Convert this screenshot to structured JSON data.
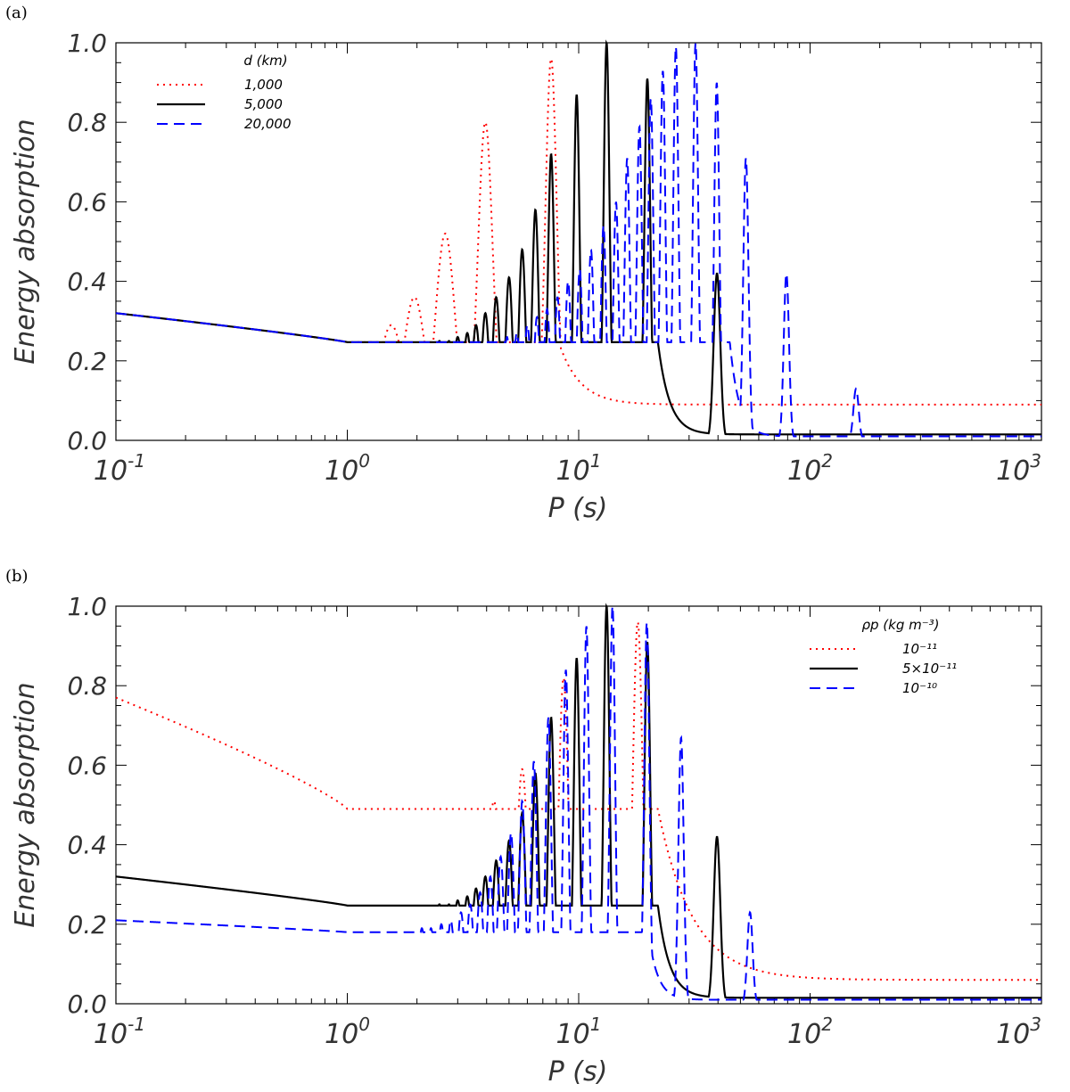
{
  "chart_data": [
    {
      "type": "line",
      "panel_label": "(a)",
      "xscale": "log",
      "xlim": [
        0.1,
        1000
      ],
      "ylim": [
        0.0,
        1.0
      ],
      "xlabel": "P (s)",
      "ylabel": "Energy absorption",
      "x_ticks": [
        {
          "value": 0.1,
          "base": "10",
          "exp": "-1"
        },
        {
          "value": 1,
          "base": "10",
          "exp": "0"
        },
        {
          "value": 10,
          "base": "10",
          "exp": "1"
        },
        {
          "value": 100,
          "base": "10",
          "exp": "2"
        },
        {
          "value": 1000,
          "base": "10",
          "exp": "3"
        }
      ],
      "y_ticks": [
        {
          "value": 0.0,
          "label": "0.0"
        },
        {
          "value": 0.2,
          "label": "0.2"
        },
        {
          "value": 0.4,
          "label": "0.4"
        },
        {
          "value": 0.6,
          "label": "0.6"
        },
        {
          "value": 0.8,
          "label": "0.8"
        },
        {
          "value": 1.0,
          "label": "1.0"
        }
      ],
      "legend": {
        "title": "d (km)",
        "placement": "top-left",
        "entries": [
          {
            "label": "1,000",
            "series": 0
          },
          {
            "label": "5,000",
            "series": 1
          },
          {
            "label": "20,000",
            "series": 2
          }
        ]
      },
      "series": [
        {
          "name": "1,000",
          "color": "#ff0000",
          "dash": "dotted",
          "baseline": {
            "a": 0.32,
            "b": 0.247,
            "c": 0.9
          },
          "peaks": [
            {
              "P": 1.55,
              "h": 0.29,
              "w": 0.08
            },
            {
              "P": 1.95,
              "h": 0.36,
              "w": 0.07
            },
            {
              "P": 2.65,
              "h": 0.52,
              "w": 0.06
            },
            {
              "P": 3.95,
              "h": 0.8,
              "w": 0.045
            },
            {
              "P": 7.6,
              "h": 0.96,
              "w": 0.035
            }
          ],
          "tail": {
            "P0": 8.2,
            "h0": 0.09,
            "k": 0.09
          }
        },
        {
          "name": "5,000",
          "color": "#000000",
          "dash": "solid",
          "baseline": {
            "a": 0.32,
            "b": 0.247,
            "c": 0.9
          },
          "peaks": [
            {
              "P": 2.5,
              "h": 0.25,
              "w": 0.03
            },
            {
              "P": 2.75,
              "h": 0.25,
              "w": 0.03
            },
            {
              "P": 3.0,
              "h": 0.26,
              "w": 0.028
            },
            {
              "P": 3.3,
              "h": 0.27,
              "w": 0.026
            },
            {
              "P": 3.6,
              "h": 0.29,
              "w": 0.025
            },
            {
              "P": 3.95,
              "h": 0.32,
              "w": 0.024
            },
            {
              "P": 4.4,
              "h": 0.36,
              "w": 0.023
            },
            {
              "P": 5.0,
              "h": 0.41,
              "w": 0.022
            },
            {
              "P": 5.7,
              "h": 0.48,
              "w": 0.021
            },
            {
              "P": 6.5,
              "h": 0.58,
              "w": 0.02
            },
            {
              "P": 7.6,
              "h": 0.72,
              "w": 0.019
            },
            {
              "P": 9.8,
              "h": 0.87,
              "w": 0.018
            },
            {
              "P": 13.2,
              "h": 1.0,
              "w": 0.018
            },
            {
              "P": 19.8,
              "h": 0.91,
              "w": 0.018
            },
            {
              "P": 39.6,
              "h": 0.42,
              "w": 0.02
            }
          ],
          "tail": {
            "P0": 22.0,
            "h0": 0.015,
            "k": 0.05
          }
        },
        {
          "name": "20,000",
          "color": "#0000ff",
          "dash": "dashed",
          "baseline": {
            "a": 0.32,
            "b": 0.247,
            "c": 0.9
          },
          "peaks": [
            {
              "P": 4.9,
              "h": 0.26,
              "w": 0.02
            },
            {
              "P": 5.4,
              "h": 0.27,
              "w": 0.02
            },
            {
              "P": 6.0,
              "h": 0.29,
              "w": 0.02
            },
            {
              "P": 6.6,
              "h": 0.31,
              "w": 0.019
            },
            {
              "P": 7.3,
              "h": 0.33,
              "w": 0.019
            },
            {
              "P": 8.1,
              "h": 0.36,
              "w": 0.018
            },
            {
              "P": 9.0,
              "h": 0.4,
              "w": 0.018
            },
            {
              "P": 10.1,
              "h": 0.43,
              "w": 0.017
            },
            {
              "P": 11.3,
              "h": 0.48,
              "w": 0.017
            },
            {
              "P": 12.8,
              "h": 0.54,
              "w": 0.016
            },
            {
              "P": 14.5,
              "h": 0.6,
              "w": 0.016
            },
            {
              "P": 16.2,
              "h": 0.71,
              "w": 0.016
            },
            {
              "P": 18.3,
              "h": 0.79,
              "w": 0.016
            },
            {
              "P": 20.5,
              "h": 0.86,
              "w": 0.016
            },
            {
              "P": 23.1,
              "h": 0.93,
              "w": 0.016
            },
            {
              "P": 26.3,
              "h": 0.99,
              "w": 0.016
            },
            {
              "P": 32.0,
              "h": 1.0,
              "w": 0.016
            },
            {
              "P": 39.5,
              "h": 0.9,
              "w": 0.016
            },
            {
              "P": 52.8,
              "h": 0.71,
              "w": 0.016
            },
            {
              "P": 79.0,
              "h": 0.42,
              "w": 0.016
            },
            {
              "P": 158.0,
              "h": 0.13,
              "w": 0.016
            }
          ],
          "tail": {
            "P0": 45.0,
            "h0": 0.01,
            "k": 0.04
          }
        }
      ]
    },
    {
      "type": "line",
      "panel_label": "(b)",
      "xscale": "log",
      "xlim": [
        0.1,
        1000
      ],
      "ylim": [
        0.0,
        1.0
      ],
      "xlabel": "P (s)",
      "ylabel": "Energy absorption",
      "x_ticks": [
        {
          "value": 0.1,
          "base": "10",
          "exp": "-1"
        },
        {
          "value": 1,
          "base": "10",
          "exp": "0"
        },
        {
          "value": 10,
          "base": "10",
          "exp": "1"
        },
        {
          "value": 100,
          "base": "10",
          "exp": "2"
        },
        {
          "value": 1000,
          "base": "10",
          "exp": "3"
        }
      ],
      "y_ticks": [
        {
          "value": 0.0,
          "label": "0.0"
        },
        {
          "value": 0.2,
          "label": "0.2"
        },
        {
          "value": 0.4,
          "label": "0.4"
        },
        {
          "value": 0.6,
          "label": "0.6"
        },
        {
          "value": 0.8,
          "label": "0.8"
        },
        {
          "value": 1.0,
          "label": "1.0"
        }
      ],
      "legend": {
        "title": "ρp (kg m⁻³)",
        "placement": "top-right",
        "entries": [
          {
            "label": "10⁻¹¹",
            "series": 0
          },
          {
            "label": "5×10⁻¹¹",
            "series": 1
          },
          {
            "label": "10⁻¹⁰",
            "series": 2
          }
        ]
      },
      "series": [
        {
          "name": "10⁻¹¹",
          "color": "#ff0000",
          "dash": "dotted",
          "baseline": {
            "a": 0.77,
            "b": 0.49,
            "c": 0.85
          },
          "peaks": [
            {
              "P": 3.1,
              "h": 0.49,
              "w": 0.04
            },
            {
              "P": 4.3,
              "h": 0.51,
              "w": 0.04
            },
            {
              "P": 5.7,
              "h": 0.59,
              "w": 0.035
            },
            {
              "P": 8.6,
              "h": 0.82,
              "w": 0.03
            },
            {
              "P": 18.0,
              "h": 0.96,
              "w": 0.03
            }
          ],
          "tail": {
            "P0": 22.0,
            "h0": 0.06,
            "k": 0.15
          }
        },
        {
          "name": "5×10⁻¹¹",
          "color": "#000000",
          "dash": "solid",
          "baseline": {
            "a": 0.32,
            "b": 0.247,
            "c": 0.9
          },
          "peaks": [
            {
              "P": 2.5,
              "h": 0.25,
              "w": 0.03
            },
            {
              "P": 2.75,
              "h": 0.25,
              "w": 0.03
            },
            {
              "P": 3.0,
              "h": 0.26,
              "w": 0.028
            },
            {
              "P": 3.3,
              "h": 0.27,
              "w": 0.026
            },
            {
              "P": 3.6,
              "h": 0.29,
              "w": 0.025
            },
            {
              "P": 3.95,
              "h": 0.32,
              "w": 0.024
            },
            {
              "P": 4.4,
              "h": 0.36,
              "w": 0.023
            },
            {
              "P": 5.0,
              "h": 0.41,
              "w": 0.022
            },
            {
              "P": 5.7,
              "h": 0.48,
              "w": 0.021
            },
            {
              "P": 6.5,
              "h": 0.58,
              "w": 0.02
            },
            {
              "P": 7.6,
              "h": 0.72,
              "w": 0.019
            },
            {
              "P": 9.8,
              "h": 0.87,
              "w": 0.018
            },
            {
              "P": 13.2,
              "h": 1.0,
              "w": 0.018
            },
            {
              "P": 19.8,
              "h": 0.91,
              "w": 0.018
            },
            {
              "P": 39.6,
              "h": 0.42,
              "w": 0.02
            }
          ],
          "tail": {
            "P0": 22.0,
            "h0": 0.015,
            "k": 0.05
          }
        },
        {
          "name": "10⁻¹⁰",
          "color": "#0000ff",
          "dash": "dashed",
          "baseline": {
            "a": 0.21,
            "b": 0.18,
            "c": 0.9
          },
          "peaks": [
            {
              "P": 2.1,
              "h": 0.19,
              "w": 0.02
            },
            {
              "P": 2.3,
              "h": 0.19,
              "w": 0.02
            },
            {
              "P": 2.55,
              "h": 0.2,
              "w": 0.02
            },
            {
              "P": 2.8,
              "h": 0.21,
              "w": 0.02
            },
            {
              "P": 3.1,
              "h": 0.23,
              "w": 0.02
            },
            {
              "P": 3.4,
              "h": 0.25,
              "w": 0.02
            },
            {
              "P": 3.75,
              "h": 0.28,
              "w": 0.02
            },
            {
              "P": 4.15,
              "h": 0.32,
              "w": 0.019
            },
            {
              "P": 4.6,
              "h": 0.37,
              "w": 0.019
            },
            {
              "P": 5.1,
              "h": 0.43,
              "w": 0.018
            },
            {
              "P": 5.7,
              "h": 0.51,
              "w": 0.018
            },
            {
              "P": 6.4,
              "h": 0.61,
              "w": 0.017
            },
            {
              "P": 7.4,
              "h": 0.72,
              "w": 0.017
            },
            {
              "P": 8.8,
              "h": 0.84,
              "w": 0.016
            },
            {
              "P": 10.8,
              "h": 0.95,
              "w": 0.016
            },
            {
              "P": 14.0,
              "h": 1.0,
              "w": 0.016
            },
            {
              "P": 19.7,
              "h": 0.96,
              "w": 0.016
            },
            {
              "P": 27.7,
              "h": 0.67,
              "w": 0.016
            },
            {
              "P": 55.0,
              "h": 0.23,
              "w": 0.016
            }
          ],
          "tail": {
            "P0": 20.0,
            "h0": 0.01,
            "k": 0.04
          }
        }
      ]
    }
  ]
}
